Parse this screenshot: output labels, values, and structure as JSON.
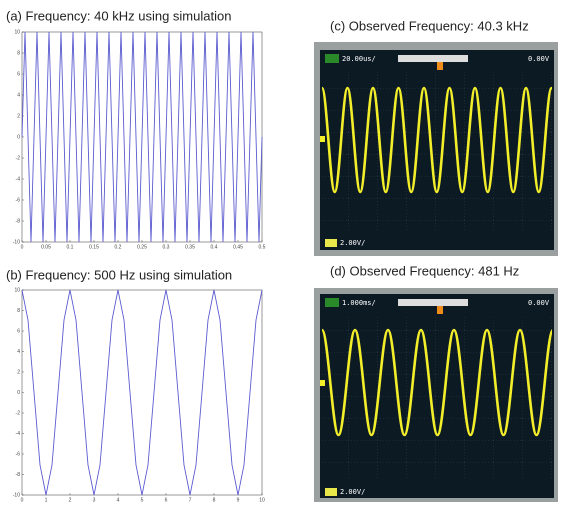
{
  "chart_data": [
    {
      "type": "line",
      "title": "(a) Frequency: 40 kHz using simulation",
      "x": [
        0,
        0.00625,
        0.0125,
        0.01875,
        0.025,
        0.03125,
        0.0375,
        0.04375,
        0.05,
        0.05625,
        0.0625,
        0.06875,
        0.075,
        0.08125,
        0.0875,
        0.09375,
        0.1,
        0.10625,
        0.1125,
        0.11875,
        0.125,
        0.13125,
        0.1375,
        0.14375,
        0.15,
        0.15625,
        0.1625,
        0.16875,
        0.175,
        0.18125,
        0.1875,
        0.19375,
        0.2,
        0.20625,
        0.2125,
        0.21875,
        0.225,
        0.23125,
        0.2375,
        0.24375,
        0.25,
        0.25625,
        0.2625,
        0.26875,
        0.275,
        0.28125,
        0.2875,
        0.29375,
        0.3,
        0.30625,
        0.3125,
        0.31875,
        0.325,
        0.33125,
        0.3375,
        0.34375,
        0.35,
        0.35625,
        0.3625,
        0.36875,
        0.375,
        0.38125,
        0.3875,
        0.39375,
        0.4,
        0.40625,
        0.4125,
        0.41875,
        0.425,
        0.43125,
        0.4375,
        0.44375,
        0.45,
        0.45625,
        0.4625,
        0.46875,
        0.475,
        0.48125,
        0.4875,
        0.49375,
        0.5
      ],
      "values": [
        0,
        10,
        0,
        -10,
        0,
        10,
        0,
        -10,
        0,
        10,
        0,
        -10,
        0,
        10,
        0,
        -10,
        0,
        10,
        0,
        -10,
        0,
        10,
        0,
        -10,
        0,
        10,
        0,
        -10,
        0,
        10,
        0,
        -10,
        0,
        10,
        0,
        -10,
        0,
        10,
        0,
        -10,
        0,
        10,
        0,
        -10,
        0,
        10,
        0,
        -10,
        0,
        10,
        0,
        -10,
        0,
        10,
        0,
        -10,
        0,
        10,
        0,
        -10,
        0,
        10,
        0,
        -10,
        0,
        10,
        0,
        -10,
        0,
        10,
        0,
        -10,
        0,
        10,
        0,
        -10,
        0,
        10,
        0,
        -10,
        0
      ],
      "color": "#5b5bd0",
      "xlim": [
        0,
        0.5
      ],
      "xticks": [
        0,
        0.05,
        0.1,
        0.15,
        0.2,
        0.25,
        0.3,
        0.35,
        0.4,
        0.45,
        0.5
      ],
      "ylim": [
        -10,
        10
      ],
      "yticks": [
        -10,
        -8,
        -6,
        -4,
        -2,
        0,
        2,
        4,
        6,
        8,
        10
      ]
    },
    {
      "type": "line",
      "title": "(b) Frequency: 500 Hz using simulation",
      "x": [
        0,
        0.25,
        0.5,
        0.75,
        1,
        1.25,
        1.5,
        1.75,
        2,
        2.25,
        2.5,
        2.75,
        3,
        3.25,
        3.5,
        3.75,
        4,
        4.25,
        4.5,
        4.75,
        5,
        5.25,
        5.5,
        5.75,
        6,
        6.25,
        6.5,
        6.75,
        7,
        7.25,
        7.5,
        7.75,
        8,
        8.25,
        8.5,
        8.75,
        9,
        9.25,
        9.5,
        9.75,
        10
      ],
      "values": [
        10,
        7.07,
        0,
        -7.07,
        -10,
        -7.07,
        0,
        7.07,
        10,
        7.07,
        0,
        -7.07,
        -10,
        -7.07,
        0,
        7.07,
        10,
        7.07,
        0,
        -7.07,
        -10,
        -7.07,
        0,
        7.07,
        10,
        7.07,
        0,
        -7.07,
        -10,
        -7.07,
        0,
        7.07,
        10,
        7.07,
        0,
        -7.07,
        -10,
        -7.07,
        0,
        7.07,
        10
      ],
      "color": "#5b5bd0",
      "xlim": [
        0,
        10
      ],
      "xticks": [
        0,
        1,
        2,
        3,
        4,
        5,
        6,
        7,
        8,
        9,
        10
      ],
      "ylim": [
        -10,
        10
      ],
      "yticks": [
        -10,
        -8,
        -6,
        -4,
        -2,
        0,
        2,
        4,
        6,
        8,
        10
      ]
    }
  ],
  "photos": [
    {
      "caption": "(c) Observed Frequency: 40.3 kHz",
      "timebase": "20.00us/",
      "offset": "0.00V",
      "volts": "2.00V/"
    },
    {
      "caption": "(d) Observed Frequency: 481 Hz",
      "timebase": "1.000ms/",
      "offset": "0.00V",
      "volts": "2.00V/"
    }
  ]
}
